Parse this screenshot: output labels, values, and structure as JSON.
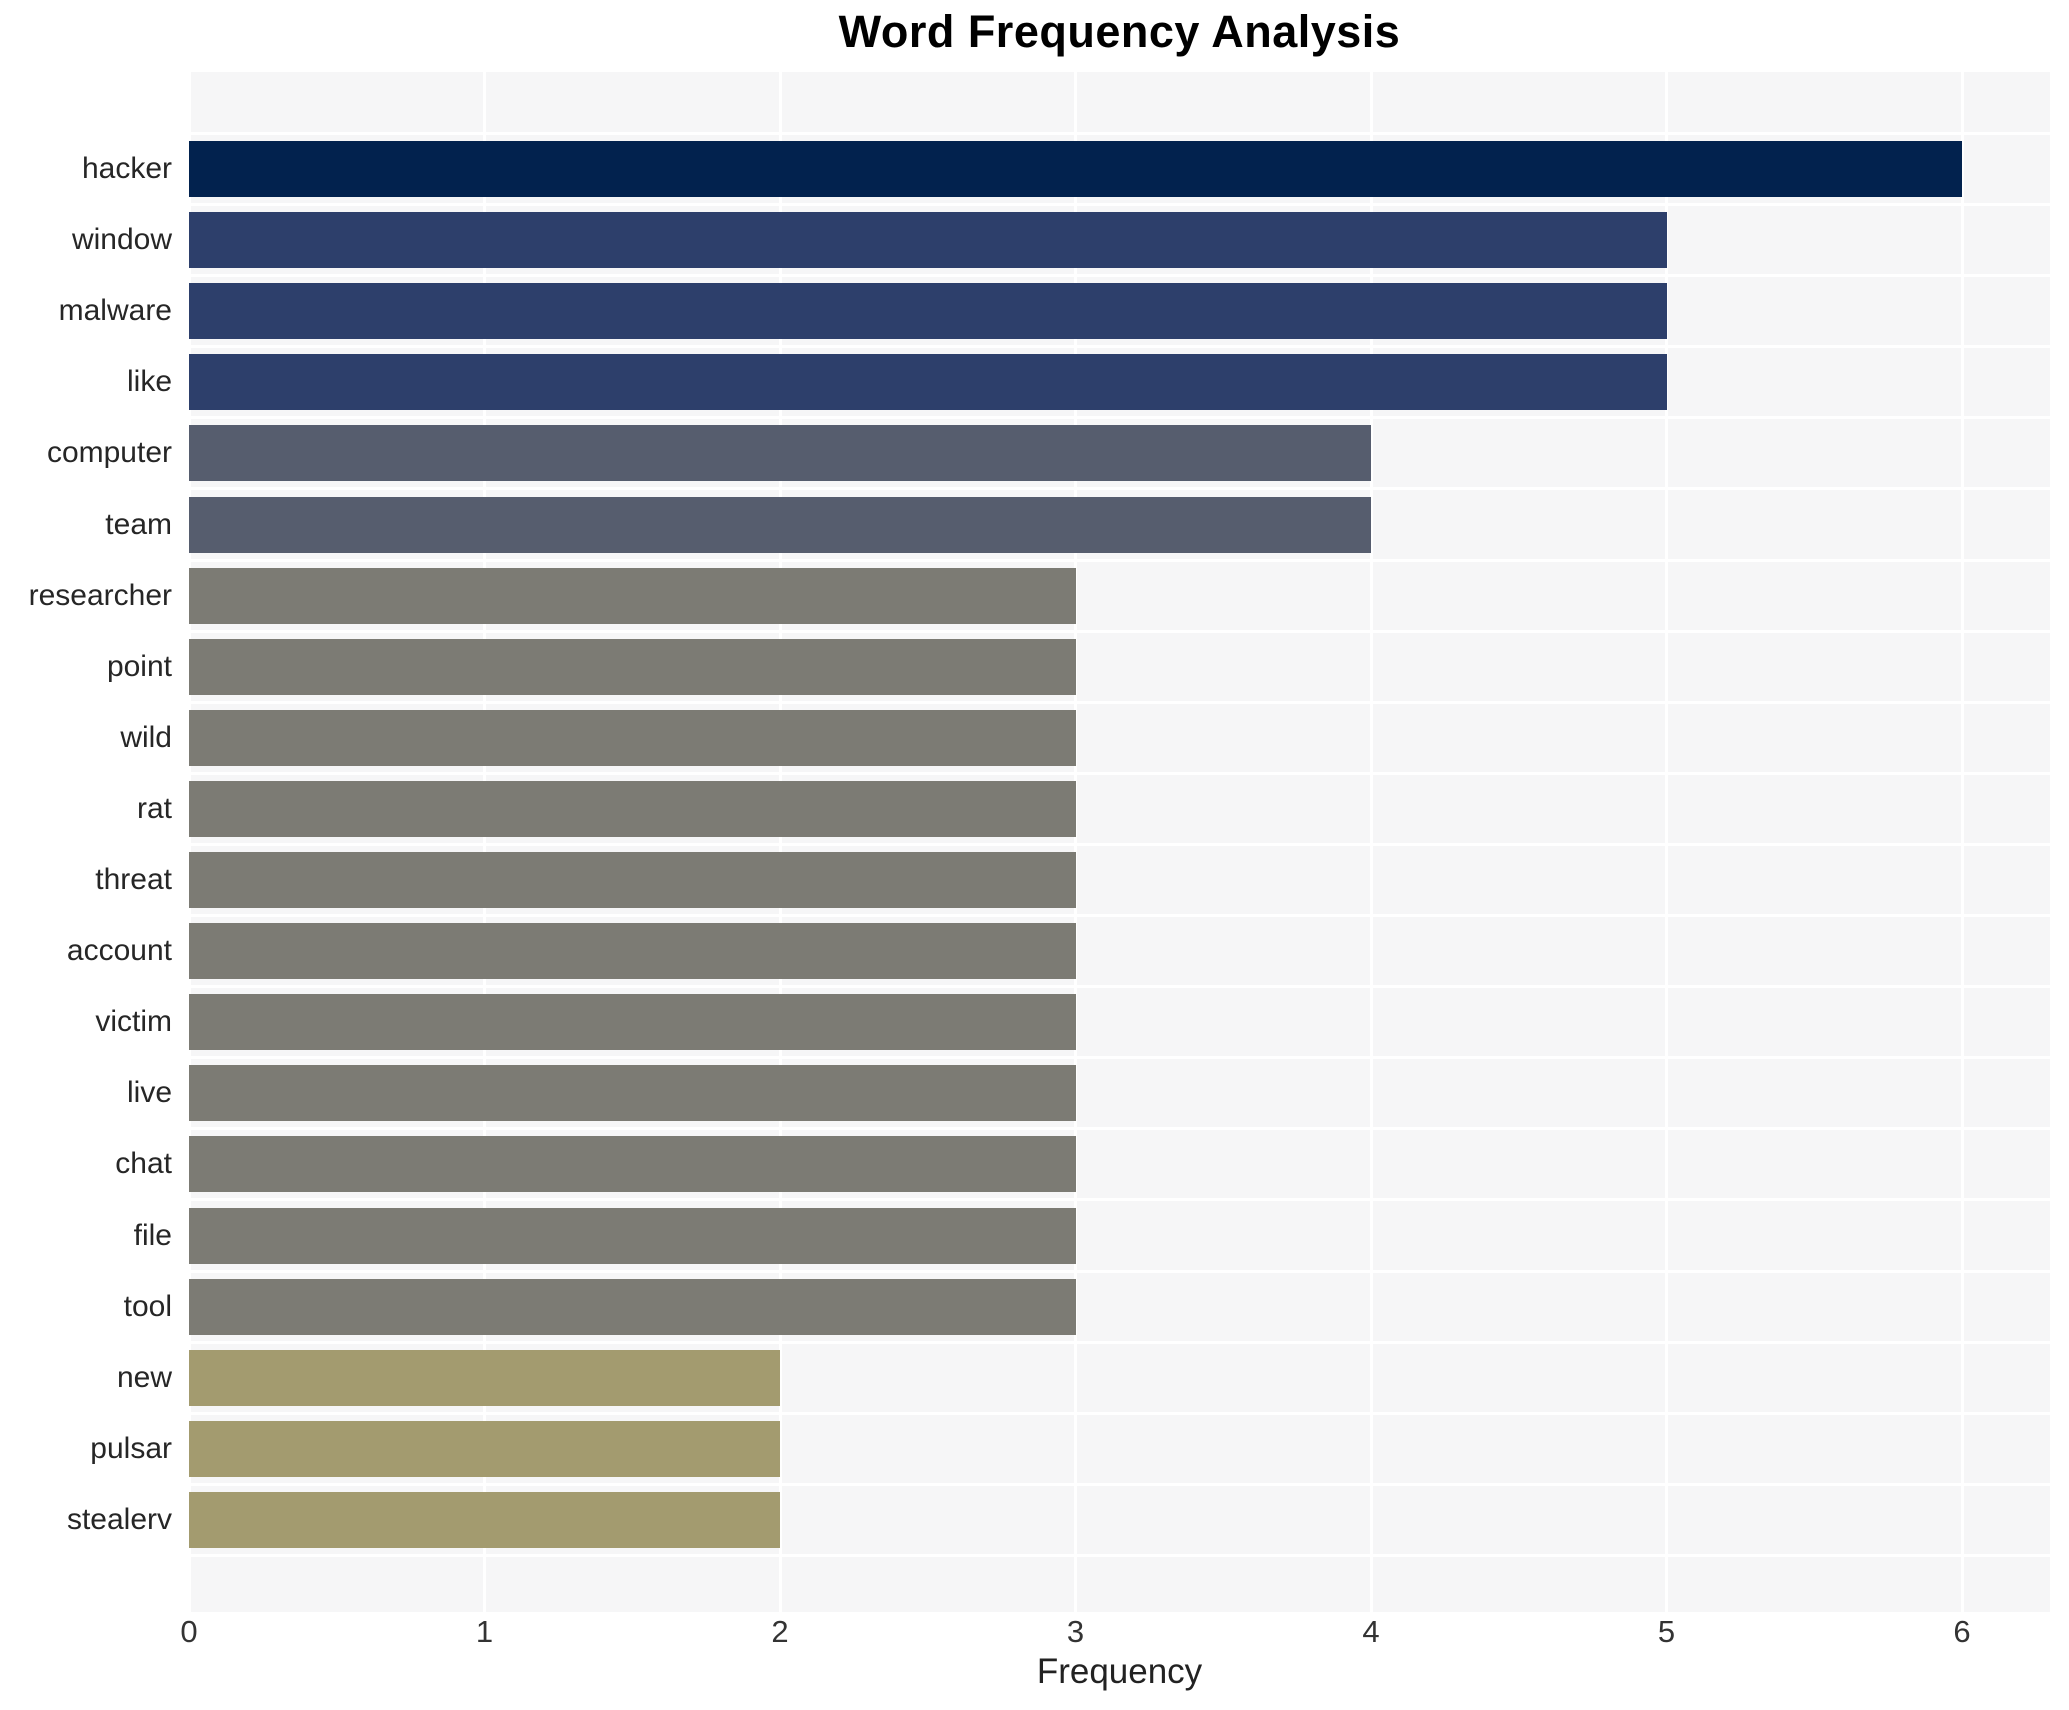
{
  "chart_data": {
    "type": "bar",
    "orientation": "horizontal",
    "title": "Word Frequency Analysis",
    "xlabel": "Frequency",
    "ylabel": "",
    "categories": [
      "hacker",
      "window",
      "malware",
      "like",
      "computer",
      "team",
      "researcher",
      "point",
      "wild",
      "rat",
      "threat",
      "account",
      "victim",
      "live",
      "chat",
      "file",
      "tool",
      "new",
      "pulsar",
      "stealerv"
    ],
    "values": [
      6,
      5,
      5,
      5,
      4,
      4,
      3,
      3,
      3,
      3,
      3,
      3,
      3,
      3,
      3,
      3,
      3,
      2,
      2,
      2
    ],
    "xlim": [
      0,
      6.3
    ],
    "xticks": [
      "0",
      "1",
      "2",
      "3",
      "4",
      "5",
      "6"
    ],
    "grid": "on",
    "legend": "none",
    "value_colors": {
      "6": "#02224e",
      "5": "#2d3f6b",
      "4": "#565d6e",
      "3": "#7c7b74",
      "2": "#a39b6f"
    },
    "plot_background": "#f6f6f7",
    "grid_color": "#ffffff",
    "label_color": "#262626",
    "tick_color": "#333333",
    "title_color": "#000000"
  }
}
